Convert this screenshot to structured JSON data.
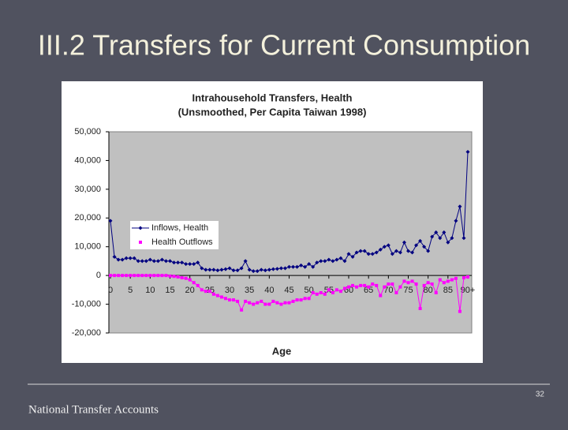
{
  "slide": {
    "title": "III.2 Transfers for Current Consumption",
    "footer": "National Transfer Accounts",
    "page_number": "32"
  },
  "chart_data": {
    "type": "line",
    "title": "Intrahousehold Transfers, Health",
    "subtitle": "(Unsmoothed, Per Capita Taiwan 1998)",
    "x_label": "Age",
    "x": [
      0,
      1,
      2,
      3,
      4,
      5,
      6,
      7,
      8,
      9,
      10,
      11,
      12,
      13,
      14,
      15,
      16,
      17,
      18,
      19,
      20,
      21,
      22,
      23,
      24,
      25,
      26,
      27,
      28,
      29,
      30,
      31,
      32,
      33,
      34,
      35,
      36,
      37,
      38,
      39,
      40,
      41,
      42,
      43,
      44,
      45,
      46,
      47,
      48,
      49,
      50,
      51,
      52,
      53,
      54,
      55,
      56,
      57,
      58,
      59,
      60,
      61,
      62,
      63,
      64,
      65,
      66,
      67,
      68,
      69,
      70,
      71,
      72,
      73,
      74,
      75,
      76,
      77,
      78,
      79,
      80,
      81,
      82,
      83,
      84,
      85,
      86,
      87,
      88,
      89,
      90
    ],
    "series": [
      {
        "name": "Inflows, Health",
        "color": "#000080",
        "marker": "diamond",
        "values": [
          19000,
          6500,
          5500,
          5500,
          6000,
          6000,
          6000,
          5000,
          5000,
          5000,
          5500,
          5000,
          5000,
          5500,
          5000,
          5000,
          4500,
          4500,
          4500,
          4000,
          4000,
          4000,
          4500,
          2500,
          2000,
          2000,
          2000,
          1800,
          2000,
          2200,
          2500,
          1800,
          1800,
          2500,
          5000,
          2000,
          1500,
          1500,
          2000,
          1800,
          2000,
          2200,
          2300,
          2500,
          2500,
          3000,
          3000,
          3000,
          3500,
          3000,
          4000,
          3000,
          4500,
          5000,
          5000,
          5500,
          5000,
          5500,
          6000,
          5000,
          7500,
          6500,
          8000,
          8500,
          8500,
          7500,
          7500,
          8000,
          9000,
          10000,
          10500,
          7500,
          8500,
          8000,
          11500,
          8500,
          8000,
          10500,
          12000,
          10000,
          8500,
          13500,
          15000,
          13000,
          15000,
          11500,
          13000,
          19000,
          24000,
          13000,
          43000
        ]
      },
      {
        "name": "Health Outflows",
        "color": "#ff00ff",
        "marker": "square",
        "values": [
          0,
          0,
          0,
          0,
          0,
          0,
          0,
          0,
          0,
          0,
          0,
          0,
          0,
          0,
          0,
          -200,
          -300,
          -500,
          -800,
          -1000,
          -1500,
          -2500,
          -3500,
          -5000,
          -5500,
          -5500,
          -6500,
          -7000,
          -7500,
          -8000,
          -8500,
          -8500,
          -9000,
          -12000,
          -9000,
          -9500,
          -10000,
          -9500,
          -9000,
          -10000,
          -10000,
          -9000,
          -9500,
          -10000,
          -9500,
          -9500,
          -9000,
          -8500,
          -8500,
          -8000,
          -8000,
          -6000,
          -6500,
          -6000,
          -6500,
          -5000,
          -6000,
          -5000,
          -5500,
          -4500,
          -4000,
          -3500,
          -4000,
          -3500,
          -3500,
          -4000,
          -3000,
          -3500,
          -7000,
          -4000,
          -3000,
          -3000,
          -6000,
          -4000,
          -2000,
          -2500,
          -2000,
          -3000,
          -11500,
          -3500,
          -2500,
          -3000,
          -6000,
          -1500,
          -2500,
          -2000,
          -1500,
          -1000,
          -12500,
          -800,
          -500
        ]
      }
    ],
    "xlim": [
      0,
      90
    ],
    "xticks": [
      0,
      5,
      10,
      15,
      20,
      25,
      30,
      35,
      40,
      45,
      50,
      55,
      60,
      65,
      70,
      75,
      80,
      85,
      {
        "value": 90,
        "label": "90+"
      }
    ],
    "ylim": [
      -20000,
      50000
    ],
    "yticks": [
      {
        "value": -20000,
        "label": "-20,000"
      },
      {
        "value": -10000,
        "label": "-10,000"
      },
      0,
      {
        "value": 10000,
        "label": "10,000"
      },
      {
        "value": 20000,
        "label": "20,000"
      },
      {
        "value": 30000,
        "label": "30,000"
      },
      {
        "value": 40000,
        "label": "40,000"
      },
      {
        "value": 50000,
        "label": "50,000"
      }
    ],
    "grid": false,
    "legend": "upper left"
  }
}
